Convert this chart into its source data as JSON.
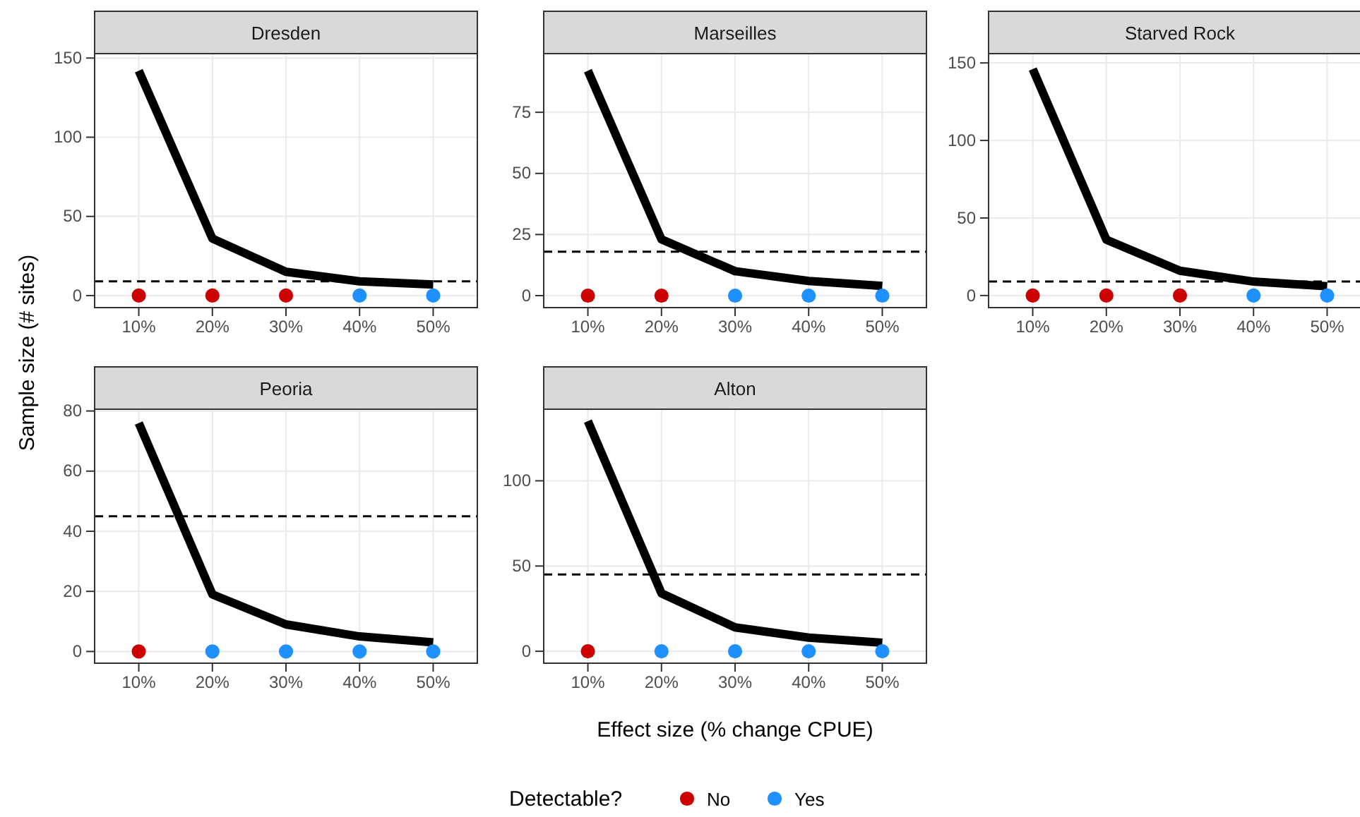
{
  "chart_data": [
    {
      "type": "scatter",
      "title": "Dresden",
      "categories": [
        "10%",
        "20%",
        "30%",
        "40%",
        "50%"
      ],
      "ylim": [
        -7.6,
        152.8
      ],
      "yticks": [
        0,
        50,
        100,
        150
      ],
      "grid": true,
      "series": [
        {
          "type": "line",
          "marker": "none",
          "color": "#000000",
          "values": [
            142,
            36,
            15,
            9,
            7
          ]
        },
        {
          "marker": "circle",
          "color": "#cc0000",
          "values": [
            0,
            0,
            0,
            null,
            null
          ]
        },
        {
          "marker": "circle",
          "color": "#1e90ff",
          "values": [
            null,
            null,
            null,
            0,
            0
          ]
        }
      ],
      "ref_lines": [
        {
          "axis": "y",
          "value": 9,
          "line_style": "dashed",
          "color": "#000000"
        }
      ]
    },
    {
      "type": "scatter",
      "title": "Marseilles",
      "categories": [
        "10%",
        "20%",
        "30%",
        "40%",
        "50%"
      ],
      "ylim": [
        -4.9,
        99
      ],
      "yticks": [
        0,
        25,
        50,
        75
      ],
      "grid": true,
      "series": [
        {
          "type": "line",
          "marker": "none",
          "color": "#000000",
          "values": [
            92,
            23,
            10,
            6,
            4
          ]
        },
        {
          "marker": "circle",
          "color": "#cc0000",
          "values": [
            0,
            0,
            null,
            null,
            null
          ]
        },
        {
          "marker": "circle",
          "color": "#1e90ff",
          "values": [
            null,
            null,
            0,
            0,
            0
          ]
        }
      ],
      "ref_lines": [
        {
          "axis": "y",
          "value": 18,
          "line_style": "dashed",
          "color": "#000000"
        }
      ]
    },
    {
      "type": "scatter",
      "title": "Starved Rock",
      "categories": [
        "10%",
        "20%",
        "30%",
        "40%",
        "50%"
      ],
      "ylim": [
        -7.8,
        156
      ],
      "yticks": [
        0,
        50,
        100,
        150
      ],
      "grid": true,
      "series": [
        {
          "type": "line",
          "marker": "none",
          "color": "#000000",
          "values": [
            146,
            36,
            16,
            9,
            6
          ]
        },
        {
          "marker": "circle",
          "color": "#cc0000",
          "values": [
            0,
            0,
            0,
            null,
            null
          ]
        },
        {
          "marker": "circle",
          "color": "#1e90ff",
          "values": [
            null,
            null,
            null,
            0,
            0
          ]
        }
      ],
      "ref_lines": [
        {
          "axis": "y",
          "value": 9,
          "line_style": "dashed",
          "color": "#000000"
        }
      ]
    },
    {
      "type": "scatter",
      "title": "Peoria",
      "ylabel": "Sample size (# sites)",
      "categories": [
        "10%",
        "20%",
        "30%",
        "40%",
        "50%"
      ],
      "ylim": [
        -3.9,
        80.6
      ],
      "yticks": [
        0,
        20,
        40,
        60,
        80
      ],
      "grid": true,
      "series": [
        {
          "type": "line",
          "marker": "none",
          "color": "#000000",
          "values": [
            76,
            19,
            9,
            5,
            3
          ]
        },
        {
          "marker": "circle",
          "color": "#cc0000",
          "values": [
            0,
            null,
            null,
            null,
            null
          ]
        },
        {
          "marker": "circle",
          "color": "#1e90ff",
          "values": [
            null,
            0,
            0,
            0,
            0
          ]
        }
      ],
      "ref_lines": [
        {
          "axis": "y",
          "value": 45,
          "line_style": "dashed",
          "color": "#000000"
        }
      ]
    },
    {
      "type": "scatter",
      "title": "Alton",
      "xlabel": "Effect size (% change CPUE)",
      "legend_title": "Detectable?",
      "legend": "bottom",
      "categories": [
        "10%",
        "20%",
        "30%",
        "40%",
        "50%"
      ],
      "ylim": [
        -7,
        142
      ],
      "yticks": [
        0,
        50,
        100
      ],
      "grid": true,
      "series": [
        {
          "type": "line",
          "marker": "none",
          "color": "#000000",
          "values": [
            135,
            34,
            14,
            8,
            5
          ]
        },
        {
          "marker": "circle",
          "name": "No",
          "color": "#cc0000",
          "values": [
            0,
            null,
            null,
            null,
            null
          ]
        },
        {
          "marker": "circle",
          "name": "Yes",
          "color": "#1e90ff",
          "values": [
            null,
            0,
            0,
            0,
            0
          ]
        }
      ],
      "ref_lines": [
        {
          "axis": "y",
          "value": 45,
          "line_style": "dashed",
          "color": "#000000"
        }
      ]
    }
  ]
}
